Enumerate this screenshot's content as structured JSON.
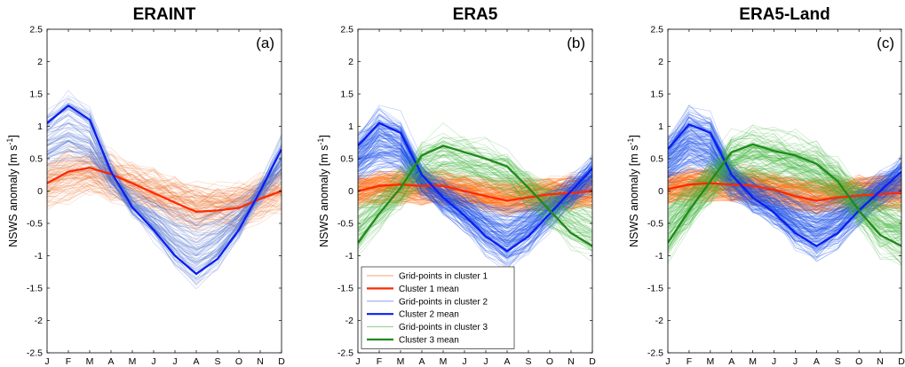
{
  "chart_data": [
    {
      "type": "line",
      "title": "ERAINT",
      "panel_label": "(a)",
      "ylabel": "NSWS anomaly [m s",
      "ylabel_sup": "-1",
      "ylabel_end": "]",
      "ylim": [
        -2.5,
        2.5
      ],
      "yticks": [
        "-2.5",
        "-2",
        "-1.5",
        "-1",
        "-0.5",
        "0",
        "0.5",
        "1",
        "1.5",
        "2",
        "2.5"
      ],
      "categories": [
        "J",
        "F",
        "M",
        "A",
        "M",
        "J",
        "J",
        "A",
        "S",
        "O",
        "N",
        "D"
      ],
      "series": [
        {
          "name": "Cluster 1 mean",
          "color": "#ff2a00",
          "values": [
            0.12,
            0.3,
            0.36,
            0.26,
            0.12,
            -0.03,
            -0.18,
            -0.32,
            -0.3,
            -0.26,
            -0.12,
            0.0
          ],
          "spread": 0.3,
          "cloud": "#ee7a3a",
          "n": 90
        },
        {
          "name": "Cluster 2 mean",
          "color": "#0a1ef2",
          "values": [
            1.05,
            1.32,
            1.1,
            0.3,
            -0.25,
            -0.6,
            -1.0,
            -1.28,
            -1.05,
            -0.6,
            0.0,
            0.65
          ],
          "spread": 0.16,
          "cloud": "#4a6ed2",
          "n": 80
        }
      ],
      "grid": false,
      "legend": "none"
    },
    {
      "type": "line",
      "title": "ERA5",
      "panel_label": "(b)",
      "ylabel": "NSWS anomaly [m s",
      "ylabel_sup": "-1",
      "ylabel_end": "]",
      "ylim": [
        -2.5,
        2.5
      ],
      "yticks": [
        "-2.5",
        "-2",
        "-1.5",
        "-1",
        "-0.5",
        "0",
        "0.5",
        "1",
        "1.5",
        "2",
        "2.5"
      ],
      "categories": [
        "J",
        "F",
        "M",
        "A",
        "M",
        "J",
        "J",
        "A",
        "S",
        "O",
        "N",
        "D"
      ],
      "series": [
        {
          "name": "Cluster 1 mean",
          "color": "#ff2a00",
          "values": [
            0.0,
            0.08,
            0.1,
            0.08,
            0.08,
            0.0,
            -0.08,
            -0.15,
            -0.1,
            -0.05,
            -0.03,
            0.0
          ],
          "spread": 0.22,
          "cloud": "#ff6a10",
          "n": 160
        },
        {
          "name": "Cluster 2 mean",
          "color": "#0a1ef2",
          "values": [
            0.7,
            1.05,
            0.9,
            0.25,
            -0.1,
            -0.38,
            -0.7,
            -0.93,
            -0.7,
            -0.35,
            0.0,
            0.35
          ],
          "spread": 0.22,
          "cloud": "#1a4ee8",
          "n": 140
        },
        {
          "name": "Cluster 3 mean",
          "color": "#1f8a1a",
          "values": [
            -0.8,
            -0.35,
            0.05,
            0.55,
            0.7,
            0.6,
            0.5,
            0.38,
            0.05,
            -0.3,
            -0.65,
            -0.85
          ],
          "spread": 0.28,
          "cloud": "#3cb33a",
          "n": 70
        }
      ],
      "grid": false,
      "legend": "bottom-left",
      "legend_entries": [
        {
          "label": "Grid-points in cluster 1",
          "color": "#f0a070",
          "width": 1
        },
        {
          "label": "Cluster 1 mean",
          "color": "#ff2a00",
          "width": 2.2
        },
        {
          "label": "Grid-points in cluster 2",
          "color": "#8a9ee8",
          "width": 1
        },
        {
          "label": "Cluster 2 mean",
          "color": "#0a1ef2",
          "width": 2.2
        },
        {
          "label": "Grid-points in cluster 3",
          "color": "#88cc86",
          "width": 1
        },
        {
          "label": "Cluster 3 mean",
          "color": "#1f8a1a",
          "width": 2.2
        }
      ]
    },
    {
      "type": "line",
      "title": "ERA5-Land",
      "panel_label": "(c)",
      "ylabel": "NSWS anomaly [m s",
      "ylabel_sup": "-1",
      "ylabel_end": "]",
      "ylim": [
        -2.5,
        2.5
      ],
      "yticks": [
        "-2.5",
        "-2",
        "-1.5",
        "-1",
        "-0.5",
        "0",
        "0.5",
        "1",
        "1.5",
        "2",
        "2.5"
      ],
      "categories": [
        "J",
        "F",
        "M",
        "A",
        "M",
        "J",
        "J",
        "A",
        "S",
        "O",
        "N",
        "D"
      ],
      "series": [
        {
          "name": "Cluster 1 mean",
          "color": "#ff2a00",
          "values": [
            0.03,
            0.1,
            0.12,
            0.1,
            0.08,
            0.02,
            -0.08,
            -0.15,
            -0.1,
            -0.07,
            -0.05,
            -0.03
          ],
          "spread": 0.24,
          "cloud": "#ff6a10",
          "n": 170
        },
        {
          "name": "Cluster 2 mean",
          "color": "#0a1ef2",
          "values": [
            0.65,
            1.03,
            0.9,
            0.25,
            -0.1,
            -0.33,
            -0.65,
            -0.85,
            -0.65,
            -0.3,
            0.0,
            0.3
          ],
          "spread": 0.24,
          "cloud": "#1a4ee8",
          "n": 150
        },
        {
          "name": "Cluster 3 mean",
          "color": "#1f8a1a",
          "values": [
            -0.8,
            -0.3,
            0.15,
            0.6,
            0.72,
            0.62,
            0.55,
            0.42,
            0.15,
            -0.3,
            -0.68,
            -0.85
          ],
          "spread": 0.3,
          "cloud": "#3cb33a",
          "n": 110
        }
      ],
      "grid": false,
      "legend": "none"
    }
  ]
}
